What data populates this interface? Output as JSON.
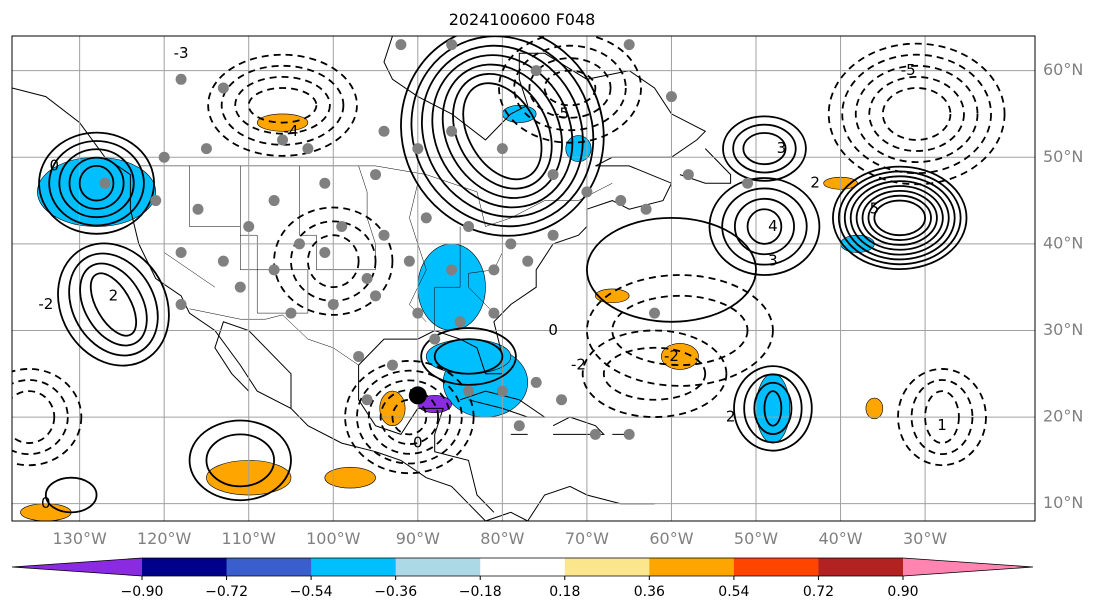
{
  "title": "2024100600 F048",
  "map": {
    "lon_range": [
      -138,
      -17
    ],
    "lat_range": [
      8,
      64
    ],
    "lon_ticks": [
      {
        "value": -130,
        "label": "130°W"
      },
      {
        "value": -120,
        "label": "120°W"
      },
      {
        "value": -110,
        "label": "110°W"
      },
      {
        "value": -100,
        "label": "100°W"
      },
      {
        "value": -90,
        "label": "90°W"
      },
      {
        "value": -80,
        "label": "80°W"
      },
      {
        "value": -70,
        "label": "70°W"
      },
      {
        "value": -60,
        "label": "60°W"
      },
      {
        "value": -50,
        "label": "50°W"
      },
      {
        "value": -40,
        "label": "40°W"
      },
      {
        "value": -30,
        "label": "30°W"
      }
    ],
    "lat_ticks": [
      {
        "value": 60,
        "label": "60°N"
      },
      {
        "value": 50,
        "label": "50°N"
      },
      {
        "value": 40,
        "label": "40°N"
      },
      {
        "value": 30,
        "label": "30°N"
      },
      {
        "value": 20,
        "label": "20°N"
      },
      {
        "value": 10,
        "label": "10°N"
      }
    ],
    "contour_labels": [
      {
        "lon": -133,
        "lat": 49,
        "text": "0"
      },
      {
        "lon": -126,
        "lat": 34,
        "text": "2"
      },
      {
        "lon": -134,
        "lat": 33,
        "text": "-2"
      },
      {
        "lon": -105,
        "lat": 53,
        "text": "-4"
      },
      {
        "lon": -118,
        "lat": 62,
        "text": "-3"
      },
      {
        "lon": -73,
        "lat": 55,
        "text": "-5"
      },
      {
        "lon": -47,
        "lat": 51,
        "text": "3"
      },
      {
        "lon": -48,
        "lat": 42,
        "text": "4"
      },
      {
        "lon": -36,
        "lat": 44,
        "text": "5"
      },
      {
        "lon": -32,
        "lat": 60,
        "text": "-5"
      },
      {
        "lon": -43,
        "lat": 47,
        "text": "2"
      },
      {
        "lon": -48,
        "lat": 38,
        "text": "3"
      },
      {
        "lon": -74,
        "lat": 30,
        "text": "0"
      },
      {
        "lon": -71,
        "lat": 26,
        "text": "-2"
      },
      {
        "lon": -60,
        "lat": 27,
        "text": "-2"
      },
      {
        "lon": -53,
        "lat": 20,
        "text": "2"
      },
      {
        "lon": -28,
        "lat": 19,
        "text": "1"
      },
      {
        "lon": -90,
        "lat": 17,
        "text": "0"
      },
      {
        "lon": -134,
        "lat": 10,
        "text": "0"
      }
    ],
    "filled_regions": [
      {
        "color": "#00bfff",
        "lon": -128,
        "lat": 46,
        "rx": 7,
        "ry": 4
      },
      {
        "color": "#00bfff",
        "lon": -86,
        "lat": 35,
        "rx": 4,
        "ry": 5
      },
      {
        "color": "#00bfff",
        "lon": -82,
        "lat": 24,
        "rx": 5,
        "ry": 4
      },
      {
        "color": "#00bfff",
        "lon": -84,
        "lat": 27,
        "rx": 5,
        "ry": 2
      },
      {
        "color": "#00bfff",
        "lon": -78,
        "lat": 55,
        "rx": 2,
        "ry": 1
      },
      {
        "color": "#00bfff",
        "lon": -71,
        "lat": 51,
        "rx": 1.5,
        "ry": 1.5
      },
      {
        "color": "#00bfff",
        "lon": -48,
        "lat": 21,
        "rx": 2,
        "ry": 4
      },
      {
        "color": "#00bfff",
        "lon": -38,
        "lat": 40,
        "rx": 2,
        "ry": 1
      },
      {
        "color": "#8a2be2",
        "lon": -88,
        "lat": 21.5,
        "rx": 2,
        "ry": 1
      },
      {
        "color": "#ffa500",
        "lon": -106,
        "lat": 54,
        "rx": 3,
        "ry": 1
      },
      {
        "color": "#ffa500",
        "lon": -67,
        "lat": 34,
        "rx": 2,
        "ry": 0.8
      },
      {
        "color": "#ffa500",
        "lon": -59,
        "lat": 27,
        "rx": 2.2,
        "ry": 1.5
      },
      {
        "color": "#ffa500",
        "lon": -93,
        "lat": 21,
        "rx": 1.5,
        "ry": 2
      },
      {
        "color": "#ffa500",
        "lon": -110,
        "lat": 13,
        "rx": 5,
        "ry": 2
      },
      {
        "color": "#ffa500",
        "lon": -134,
        "lat": 9,
        "rx": 3,
        "ry": 1
      },
      {
        "color": "#ffa500",
        "lon": -98,
        "lat": 13,
        "rx": 3,
        "ry": 1.2
      },
      {
        "color": "#ffa500",
        "lon": -36,
        "lat": 21,
        "rx": 1,
        "ry": 1.2
      },
      {
        "color": "#ffa500",
        "lon": -40,
        "lat": 47,
        "rx": 2,
        "ry": 0.7
      }
    ],
    "gray_dots": [
      [
        -118,
        59
      ],
      [
        -113,
        58
      ],
      [
        -106,
        52
      ],
      [
        -103,
        51
      ],
      [
        -94,
        53
      ],
      [
        -90,
        51
      ],
      [
        -86,
        53
      ],
      [
        -80,
        51
      ],
      [
        -74,
        48
      ],
      [
        -70,
        46
      ],
      [
        -66,
        45
      ],
      [
        -63,
        44
      ],
      [
        -58,
        48
      ],
      [
        -51,
        47
      ],
      [
        -127,
        47
      ],
      [
        -121,
        45
      ],
      [
        -116,
        44
      ],
      [
        -110,
        42
      ],
      [
        -104,
        40
      ],
      [
        -99,
        42
      ],
      [
        -94,
        41
      ],
      [
        -89,
        43
      ],
      [
        -84,
        42
      ],
      [
        -79,
        40
      ],
      [
        -74,
        41
      ],
      [
        -118,
        39
      ],
      [
        -113,
        38
      ],
      [
        -107,
        37
      ],
      [
        -101,
        39
      ],
      [
        -96,
        36
      ],
      [
        -91,
        38
      ],
      [
        -86,
        37
      ],
      [
        -81,
        37
      ],
      [
        -77,
        38
      ],
      [
        -118,
        33
      ],
      [
        -111,
        35
      ],
      [
        -105,
        32
      ],
      [
        -100,
        33
      ],
      [
        -95,
        34
      ],
      [
        -90,
        32
      ],
      [
        -85,
        31
      ],
      [
        -81,
        32
      ],
      [
        -97,
        27
      ],
      [
        -93,
        26
      ],
      [
        -88,
        29
      ],
      [
        -84,
        23
      ],
      [
        -80,
        23
      ],
      [
        -76,
        24
      ],
      [
        -73,
        22
      ],
      [
        -78,
        19
      ],
      [
        -69,
        18
      ],
      [
        -65,
        18
      ],
      [
        -62,
        32
      ],
      [
        -96,
        22
      ],
      [
        -107,
        45
      ],
      [
        -101,
        47
      ],
      [
        -120,
        50
      ],
      [
        -115,
        51
      ],
      [
        -95,
        48
      ],
      [
        -60,
        57
      ],
      [
        -92,
        63
      ],
      [
        -86,
        63
      ],
      [
        -65,
        63
      ],
      [
        -76,
        60
      ]
    ],
    "black_dot": {
      "lon": -90,
      "lat": 22.5
    }
  },
  "colorbar": {
    "colors": [
      "#8a2be2",
      "#00008b",
      "#3a5fcd",
      "#00bfff",
      "#add8e6",
      "#ffffff",
      "#fce68c",
      "#ffa500",
      "#ff4500",
      "#b22222",
      "#ff85b0"
    ],
    "labels": [
      "−0.90",
      "−0.72",
      "−0.54",
      "−0.36",
      "−0.18",
      "0.18",
      "0.36",
      "0.54",
      "0.72",
      "0.90"
    ]
  }
}
